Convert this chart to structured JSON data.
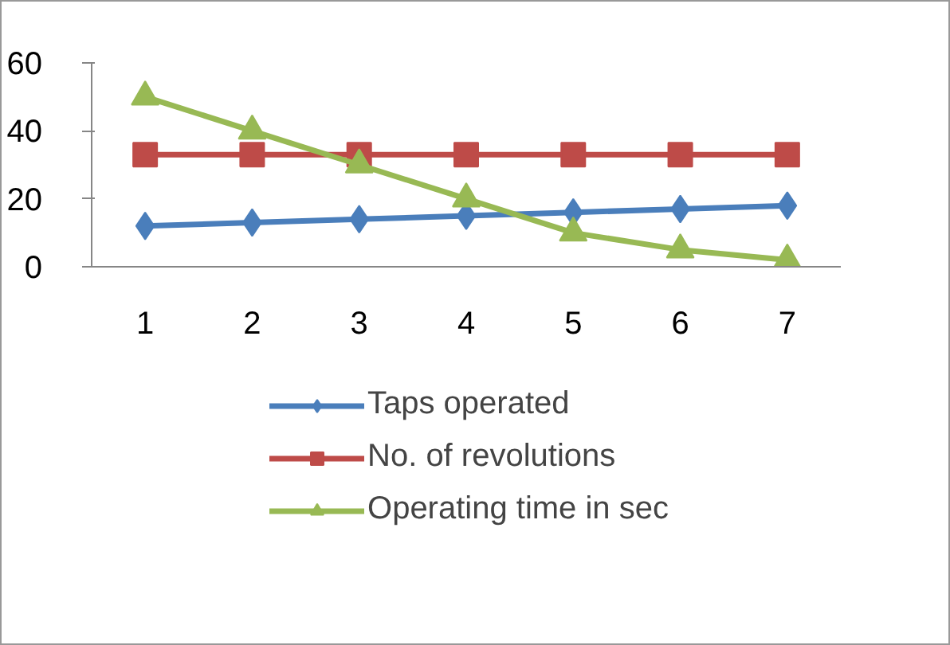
{
  "chart_data": {
    "type": "line",
    "categories": [
      "1",
      "2",
      "3",
      "4",
      "5",
      "6",
      "7"
    ],
    "series": [
      {
        "name": "Taps operated",
        "color": "#4a7ebb",
        "marker": "diamond",
        "values": [
          12,
          13,
          14,
          15,
          16,
          17,
          18
        ]
      },
      {
        "name": "No. of revolutions",
        "color": "#be4b48",
        "marker": "square",
        "values": [
          33,
          33,
          33,
          33,
          33,
          33,
          33
        ]
      },
      {
        "name": "Operating time in sec",
        "color": "#98b954",
        "marker": "triangle",
        "values": [
          50,
          40,
          30,
          20,
          10,
          5,
          2
        ]
      }
    ],
    "ylim": [
      0,
      60
    ],
    "yticks": [
      0,
      20,
      40,
      60
    ],
    "grid": false,
    "legend": "bottom"
  }
}
